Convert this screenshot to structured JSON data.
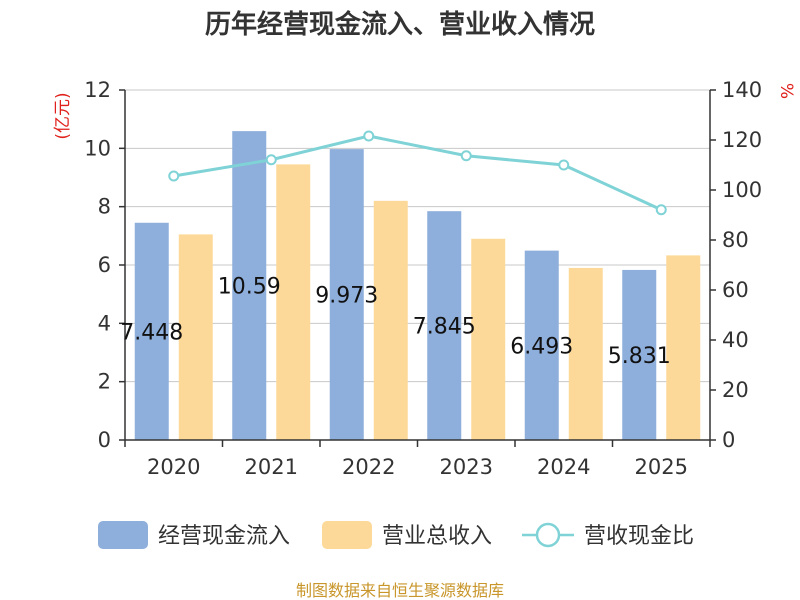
{
  "chart_data": {
    "type": "bar",
    "title": "历年经营现金流入、营业收入情况",
    "left_axis_unit": "(亿元)",
    "right_axis_unit": "%",
    "categories": [
      "2020",
      "2021",
      "2022",
      "2023",
      "2024",
      "2025"
    ],
    "ylim": [
      0,
      12
    ],
    "yticks": [
      "0",
      "2",
      "4",
      "6",
      "8",
      "10",
      "12"
    ],
    "y2lim": [
      0,
      140
    ],
    "y2ticks": [
      "0",
      "20",
      "40",
      "60",
      "80",
      "100",
      "120",
      "140"
    ],
    "grid": true,
    "legend_position": "bottom",
    "series": [
      {
        "name": "经营现金流入",
        "type": "bar",
        "axis": "left",
        "color": "#8eaedb",
        "values": [
          7.448,
          10.59,
          9.973,
          7.845,
          6.493,
          5.831
        ],
        "labels": [
          "7.448",
          "10.59",
          "9.973",
          "7.845",
          "6.493",
          "5.831"
        ]
      },
      {
        "name": "营业总收入",
        "type": "bar",
        "axis": "left",
        "color": "#fdd999",
        "values": [
          7.05,
          9.45,
          8.2,
          6.9,
          5.9,
          6.33
        ]
      },
      {
        "name": "营收现金比",
        "type": "line",
        "axis": "right",
        "color": "#7fd3d6",
        "values": [
          105.6,
          112.1,
          121.6,
          113.7,
          110.0,
          92.1
        ]
      }
    ],
    "source": "制图数据来自恒生聚源数据库"
  }
}
